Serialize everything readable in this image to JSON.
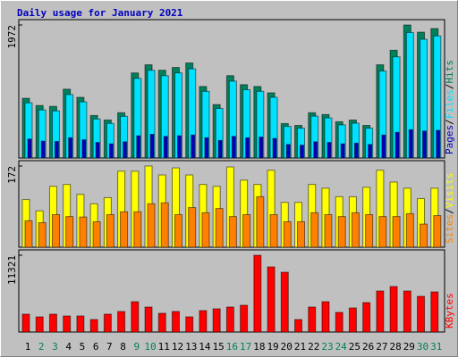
{
  "chart_data": [
    {
      "type": "bar",
      "title": "Daily usage for January 2021",
      "ylim": [
        0,
        1972
      ],
      "yticks": [
        1972
      ],
      "legend_separator": "/",
      "series": [
        {
          "name": "Hits",
          "color": "#00805c",
          "values": [
            885,
            778,
            765,
            1020,
            899,
            630,
            563,
            671,
            1261,
            1382,
            1301,
            1342,
            1409,
            1060,
            792,
            1221,
            1087,
            1060,
            966,
            510,
            483,
            671,
            644,
            537,
            563,
            483,
            1382,
            1597,
            1972,
            1865,
            1919
          ]
        },
        {
          "name": "Files",
          "color": "#00e0ff",
          "values": [
            818,
            712,
            698,
            940,
            832,
            578,
            512,
            618,
            1180,
            1300,
            1220,
            1262,
            1322,
            988,
            735,
            1140,
            1012,
            988,
            900,
            468,
            442,
            620,
            594,
            490,
            515,
            442,
            1290,
            1500,
            1860,
            1760,
            1810
          ]
        },
        {
          "name": "Pages",
          "color": "#0000c0",
          "values": [
            280,
            250,
            245,
            300,
            270,
            230,
            210,
            240,
            330,
            350,
            320,
            330,
            340,
            300,
            260,
            320,
            300,
            310,
            290,
            200,
            190,
            240,
            230,
            210,
            220,
            200,
            340,
            380,
            420,
            400,
            410
          ]
        }
      ]
    },
    {
      "type": "bar",
      "ylim": [
        0,
        172
      ],
      "yticks": [
        172
      ],
      "legend_separator": "/",
      "series": [
        {
          "name": "Visits",
          "color": "#ffff00",
          "values": [
            101,
            77,
            129,
            133,
            112,
            92,
            105,
            161,
            161,
            172,
            153,
            168,
            153,
            133,
            129,
            170,
            142,
            133,
            163,
            95,
            95,
            133,
            125,
            107,
            107,
            127,
            163,
            138,
            125,
            103,
            125
          ]
        },
        {
          "name": "Sites",
          "color": "#ff8000",
          "values": [
            56,
            52,
            69,
            65,
            64,
            54,
            69,
            75,
            75,
            92,
            94,
            69,
            84,
            73,
            82,
            65,
            69,
            107,
            69,
            54,
            54,
            73,
            69,
            65,
            73,
            69,
            65,
            65,
            71,
            49,
            67
          ]
        }
      ]
    },
    {
      "type": "bar",
      "ylim": [
        0,
        11321
      ],
      "yticks": [
        11321
      ],
      "categories": [
        "1",
        "2",
        "3",
        "4",
        "5",
        "6",
        "7",
        "8",
        "9",
        "10",
        "11",
        "12",
        "13",
        "14",
        "15",
        "16",
        "17",
        "18",
        "19",
        "20",
        "21",
        "22",
        "23",
        "24",
        "25",
        "26",
        "27",
        "28",
        "29",
        "30",
        "31"
      ],
      "category_colors": [
        "#000000",
        "#00805c",
        "#00805c",
        "#000000",
        "#000000",
        "#000000",
        "#000000",
        "#000000",
        "#00805c",
        "#00805c",
        "#000000",
        "#000000",
        "#000000",
        "#000000",
        "#000000",
        "#00805c",
        "#00805c",
        "#000000",
        "#000000",
        "#000000",
        "#000000",
        "#000000",
        "#00805c",
        "#00805c",
        "#000000",
        "#000000",
        "#000000",
        "#000000",
        "#000000",
        "#00805c",
        "#00805c"
      ],
      "series": [
        {
          "name": "KBytes",
          "color": "#ff0000",
          "values": [
            2632,
            2237,
            2632,
            2369,
            2369,
            1842,
            2632,
            3027,
            4474,
            3685,
            2764,
            3027,
            2237,
            3158,
            3422,
            3685,
            3948,
            11321,
            9607,
            8817,
            1842,
            3685,
            4474,
            2895,
            3553,
            4343,
            6054,
            6712,
            6054,
            5264,
            5922
          ]
        }
      ]
    }
  ]
}
